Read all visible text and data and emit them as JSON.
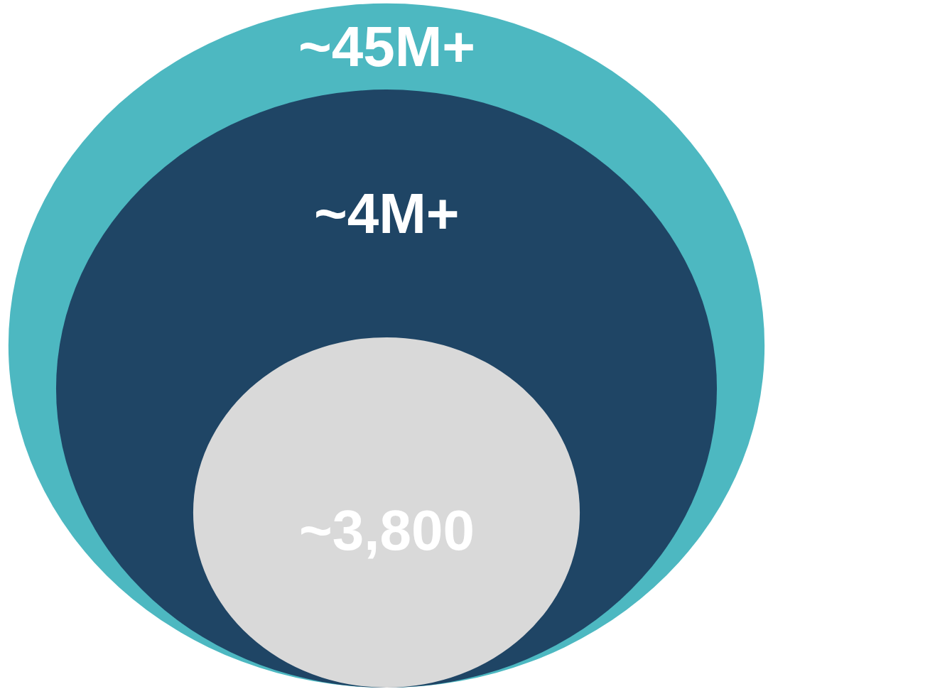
{
  "chart_data": {
    "type": "other",
    "categories": [
      null,
      null,
      null
    ],
    "values": [
      45000000,
      4000000,
      3800
    ],
    "value_labels": [
      "~45M+",
      "~4M+",
      "~3,800"
    ],
    "colors": [
      "#4db8c1",
      "#1f4565",
      "#d9d9d9"
    ]
  }
}
